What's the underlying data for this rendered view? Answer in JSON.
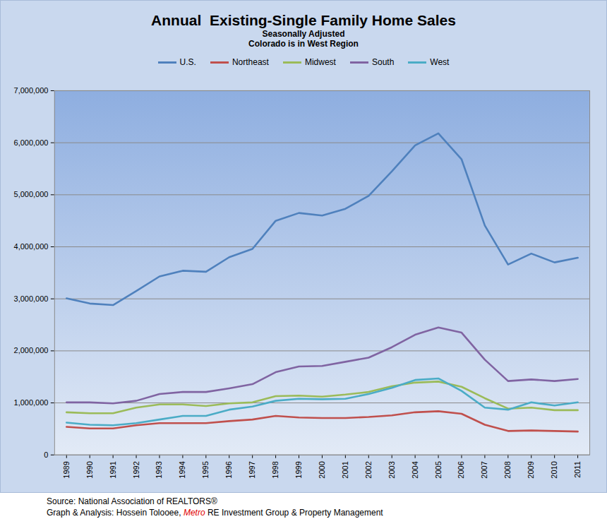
{
  "chart_data": {
    "type": "line",
    "title": "Annual  Existing-Single Family Home Sales",
    "subtitle": [
      "Seasonally Adjusted",
      "Colorado is in West Region"
    ],
    "source": "Source: National Association of REALTORS®",
    "credit": [
      "Graph & Analysis: Hossein Tolooee, ",
      "Metro",
      " RE Investment Group & Property Management"
    ],
    "categories": [
      "1989",
      "1990",
      "1991",
      "1992",
      "1993",
      "1994",
      "1995",
      "1996",
      "1997",
      "1998",
      "1999",
      "2000",
      "2001",
      "2002",
      "2003",
      "2004",
      "2005",
      "2006",
      "2007",
      "2008",
      "2009",
      "2010",
      "2011"
    ],
    "series": [
      {
        "name": "U.S.",
        "color": "#4f81bd",
        "values": [
          3010000,
          2910000,
          2880000,
          3150000,
          3430000,
          3540000,
          3520000,
          3800000,
          3960000,
          4500000,
          4650000,
          4600000,
          4730000,
          4980000,
          5450000,
          5950000,
          6180000,
          5680000,
          4410000,
          3660000,
          3870000,
          3700000,
          3790000
        ]
      },
      {
        "name": "Northeast",
        "color": "#c0504d",
        "values": [
          540000,
          510000,
          510000,
          570000,
          610000,
          610000,
          610000,
          650000,
          680000,
          750000,
          720000,
          710000,
          710000,
          730000,
          760000,
          820000,
          840000,
          790000,
          580000,
          460000,
          470000,
          460000,
          450000
        ]
      },
      {
        "name": "Midwest",
        "color": "#9bbb59",
        "values": [
          820000,
          800000,
          800000,
          910000,
          970000,
          970000,
          940000,
          990000,
          1010000,
          1130000,
          1140000,
          1120000,
          1160000,
          1210000,
          1320000,
          1390000,
          1410000,
          1310000,
          1090000,
          890000,
          910000,
          860000,
          860000
        ]
      },
      {
        "name": "South",
        "color": "#8064a2",
        "values": [
          1010000,
          1010000,
          990000,
          1040000,
          1170000,
          1210000,
          1210000,
          1280000,
          1360000,
          1590000,
          1700000,
          1710000,
          1790000,
          1870000,
          2070000,
          2310000,
          2450000,
          2350000,
          1830000,
          1420000,
          1450000,
          1420000,
          1460000
        ]
      },
      {
        "name": "West",
        "color": "#4bacc6",
        "values": [
          620000,
          580000,
          570000,
          610000,
          680000,
          750000,
          750000,
          870000,
          930000,
          1040000,
          1080000,
          1070000,
          1080000,
          1170000,
          1290000,
          1440000,
          1470000,
          1230000,
          910000,
          870000,
          1010000,
          950000,
          1010000
        ]
      }
    ],
    "ylim": [
      0,
      7000000
    ],
    "yticks": [
      0,
      {
        "value": 1000000,
        "label": "1,000,000"
      },
      {
        "value": 2000000,
        "label": "2,000,000"
      },
      {
        "value": 3000000,
        "label": "3,000,000"
      },
      {
        "value": 4000000,
        "label": "4,000,000"
      },
      {
        "value": 5000000,
        "label": "5,000,000"
      },
      {
        "value": 6000000,
        "label": "6,000,000"
      },
      {
        "value": 7000000,
        "label": "7,000,000"
      }
    ],
    "grid": true,
    "legend": "top"
  }
}
